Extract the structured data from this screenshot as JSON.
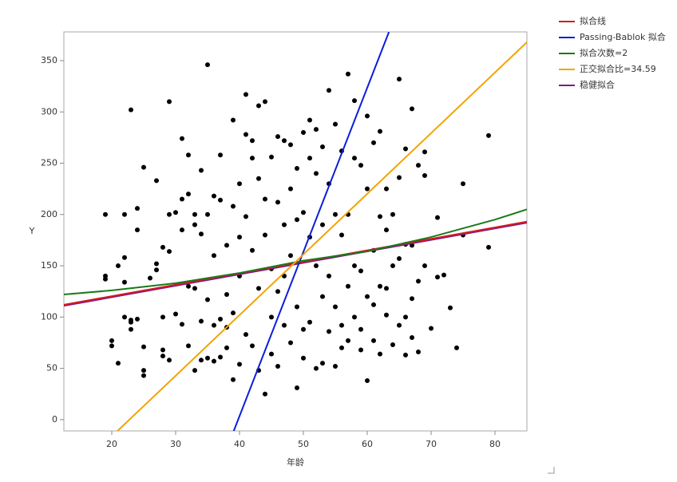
{
  "chart_data": {
    "type": "scatter",
    "xlabel": "年龄",
    "ylabel": "Y",
    "xlim": [
      12.5,
      85
    ],
    "ylim": [
      -11,
      378
    ],
    "xticks": [
      20,
      30,
      40,
      50,
      60,
      70,
      80
    ],
    "yticks": [
      0,
      50,
      100,
      150,
      200,
      250,
      300,
      350
    ],
    "points": {
      "color": "#000000",
      "x": [
        19,
        19,
        19,
        20,
        20,
        21,
        21,
        22,
        22,
        22,
        22,
        23,
        23,
        23,
        23,
        24,
        24,
        24,
        25,
        25,
        25,
        25,
        26,
        27,
        27,
        27,
        28,
        28,
        28,
        28,
        29,
        29,
        29,
        29,
        30,
        30,
        31,
        31,
        31,
        31,
        32,
        32,
        32,
        32,
        33,
        33,
        33,
        33,
        34,
        34,
        34,
        34,
        35,
        35,
        35,
        35,
        36,
        36,
        36,
        36,
        37,
        37,
        37,
        37,
        38,
        38,
        38,
        38,
        39,
        39,
        39,
        39,
        40,
        40,
        40,
        40,
        41,
        41,
        41,
        41,
        42,
        42,
        42,
        42,
        43,
        43,
        43,
        43,
        44,
        44,
        44,
        44,
        45,
        45,
        45,
        45,
        46,
        46,
        46,
        46,
        47,
        47,
        47,
        47,
        48,
        48,
        48,
        48,
        49,
        49,
        49,
        49,
        50,
        50,
        50,
        50,
        51,
        51,
        51,
        51,
        52,
        52,
        52,
        52,
        53,
        53,
        53,
        53,
        54,
        54,
        54,
        54,
        55,
        55,
        55,
        55,
        56,
        56,
        56,
        56,
        57,
        57,
        57,
        57,
        58,
        58,
        58,
        58,
        59,
        59,
        59,
        59,
        60,
        60,
        60,
        60,
        61,
        61,
        61,
        61,
        62,
        62,
        62,
        62,
        63,
        63,
        63,
        63,
        64,
        64,
        64,
        65,
        65,
        65,
        65,
        66,
        66,
        66,
        66,
        67,
        67,
        67,
        67,
        68,
        68,
        68,
        69,
        69,
        69,
        70,
        71,
        71,
        72,
        73,
        74,
        75,
        75,
        79,
        79
      ],
      "y": [
        200,
        140,
        137,
        77,
        72,
        55,
        150,
        200,
        158,
        134,
        100,
        302,
        95,
        88,
        97,
        206,
        185,
        98,
        246,
        71,
        48,
        43,
        138,
        233,
        152,
        146,
        168,
        100,
        68,
        62,
        310,
        200,
        164,
        58,
        202,
        103,
        274,
        185,
        215,
        93,
        258,
        220,
        130,
        72,
        200,
        190,
        128,
        48,
        243,
        181,
        96,
        58,
        346,
        200,
        117,
        60,
        218,
        160,
        92,
        57,
        258,
        214,
        98,
        61,
        170,
        122,
        90,
        70,
        292,
        208,
        104,
        39,
        230,
        178,
        140,
        54,
        317,
        278,
        198,
        83,
        272,
        255,
        165,
        72,
        306,
        235,
        128,
        48,
        310,
        215,
        180,
        25,
        256,
        147,
        100,
        64,
        276,
        212,
        125,
        52,
        272,
        190,
        140,
        92,
        268,
        225,
        160,
        75,
        245,
        195,
        110,
        31,
        280,
        202,
        88,
        60,
        292,
        255,
        178,
        95,
        283,
        240,
        150,
        50,
        266,
        190,
        120,
        55,
        321,
        230,
        140,
        86,
        288,
        200,
        110,
        52,
        262,
        180,
        92,
        70,
        337,
        200,
        130,
        77,
        311,
        255,
        150,
        100,
        248,
        145,
        88,
        68,
        296,
        225,
        120,
        38,
        270,
        165,
        112,
        77,
        281,
        198,
        130,
        64,
        225,
        185,
        128,
        102,
        200,
        150,
        73,
        332,
        236,
        157,
        92,
        264,
        171,
        100,
        63,
        303,
        170,
        118,
        80,
        248,
        135,
        66,
        261,
        238,
        150,
        89,
        197,
        139,
        141,
        109,
        70,
        230,
        180,
        277,
        168
      ]
    },
    "series": [
      {
        "name": "拟合线",
        "color": "#d7191c",
        "x": [
          12.5,
          85
        ],
        "values": [
          112,
          193
        ]
      },
      {
        "name": "Passing-Bablok 拟合",
        "color": "#0a1fd8",
        "x": [
          39.1,
          63.4
        ],
        "values": [
          -11,
          378
        ]
      },
      {
        "name": "拟合次数=2",
        "color": "#1a7a1a",
        "x": [
          12.5,
          20,
          30,
          40,
          50,
          60,
          70,
          80,
          85
        ],
        "values": [
          122,
          126,
          133,
          143,
          155,
          164,
          178,
          195,
          205
        ]
      },
      {
        "name": "正交拟合比=34.59",
        "color": "#f5a300",
        "x": [
          20.9,
          85
        ],
        "values": [
          -11,
          368
        ]
      },
      {
        "name": "稳健拟合",
        "color": "#7b1a8a",
        "x": [
          12.5,
          85
        ],
        "values": [
          111,
          192
        ]
      }
    ]
  }
}
